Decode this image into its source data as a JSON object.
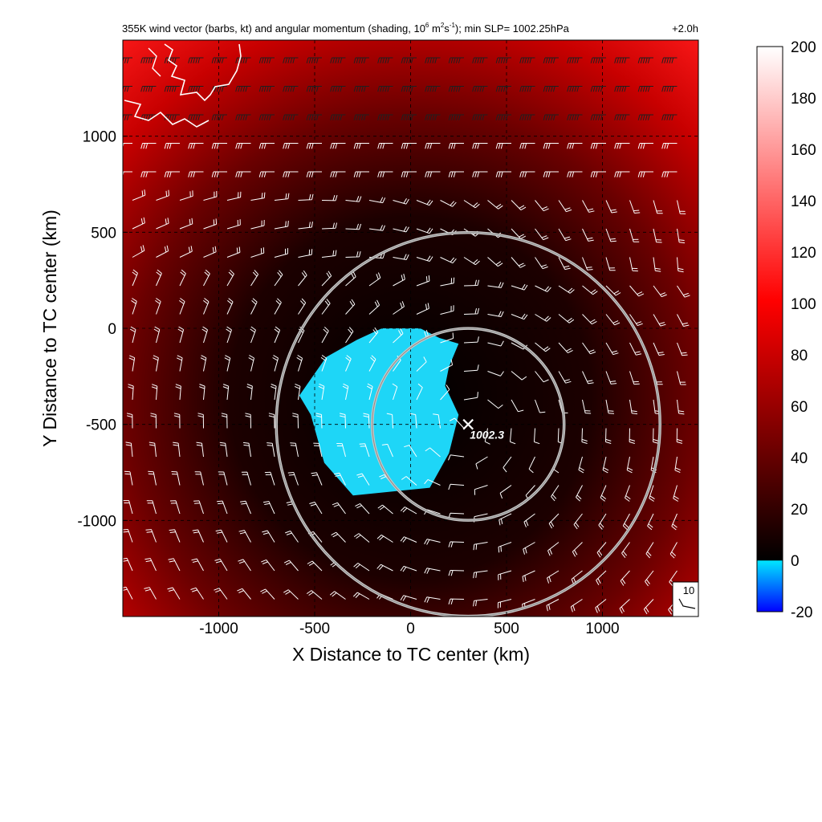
{
  "chart_data": {
    "type": "heatmap",
    "title": {
      "prefix": "355K wind vector (barbs, kt) and angular momentum (shading, 10",
      "sup1": "6",
      "mid1": " m",
      "sup2": "2",
      "mid2": "s",
      "sup3": "-1",
      "suffix": "); min SLP= 1002.25hPa",
      "time": "+2.0h"
    },
    "xlabel": "X Distance to TC center (km)",
    "ylabel": "Y Distance to TC center (km)",
    "xlim": [
      -1500,
      1500
    ],
    "ylim": [
      -1500,
      1500
    ],
    "x_ticks": [
      -1000,
      -500,
      0,
      500,
      1000
    ],
    "y_ticks": [
      1000,
      500,
      0,
      -500,
      -1000
    ],
    "grid": "dashed",
    "colorbar": {
      "range": [
        -20,
        200
      ],
      "ticks": [
        200,
        180,
        160,
        140,
        120,
        100,
        80,
        60,
        40,
        20,
        0,
        -20
      ]
    },
    "slp_marker": {
      "x": 300,
      "y": -500,
      "label": "1002.3"
    },
    "rings": [
      {
        "cx": 300,
        "cy": -500,
        "r": 500
      },
      {
        "cx": 300,
        "cy": -500,
        "r": 1000
      }
    ],
    "negative_region": [
      [
        -150,
        0
      ],
      [
        50,
        0
      ],
      [
        150,
        -50
      ],
      [
        250,
        -80
      ],
      [
        200,
        -200
      ],
      [
        180,
        -300
      ],
      [
        250,
        -450
      ],
      [
        200,
        -650
      ],
      [
        100,
        -830
      ],
      [
        -300,
        -870
      ],
      [
        -450,
        -700
      ],
      [
        -520,
        -450
      ],
      [
        -580,
        -350
      ],
      [
        -440,
        -150
      ],
      [
        -280,
        -60
      ]
    ],
    "barb_reference": {
      "label": "10"
    }
  },
  "colors": {
    "positive_high": "#ffffff",
    "positive_mid": "#ff0000",
    "zero": "#000000",
    "negative": "#00e5ff",
    "negative_low": "#0000ff"
  }
}
